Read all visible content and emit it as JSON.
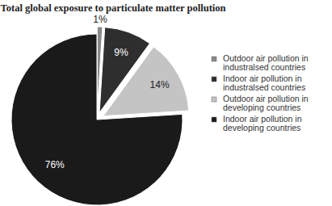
{
  "chart_data": {
    "type": "pie",
    "title": "Total global exposure to particulate matter pollution",
    "categories": [
      "Outdoor air pollution in industralsed countries",
      "Indoor air pollution in industralsed countries",
      "Outdoor air pollution in developing countries",
      "Indoor air pollution in developing countries"
    ],
    "values": [
      1,
      9,
      14,
      76
    ],
    "value_labels": [
      "1%",
      "9%",
      "14%",
      "76%"
    ],
    "colors": [
      "#8a8a8a",
      "#2e2e2e",
      "#c4c4c4",
      "#1a1a1a"
    ],
    "data_labels": true,
    "legend": "right"
  }
}
